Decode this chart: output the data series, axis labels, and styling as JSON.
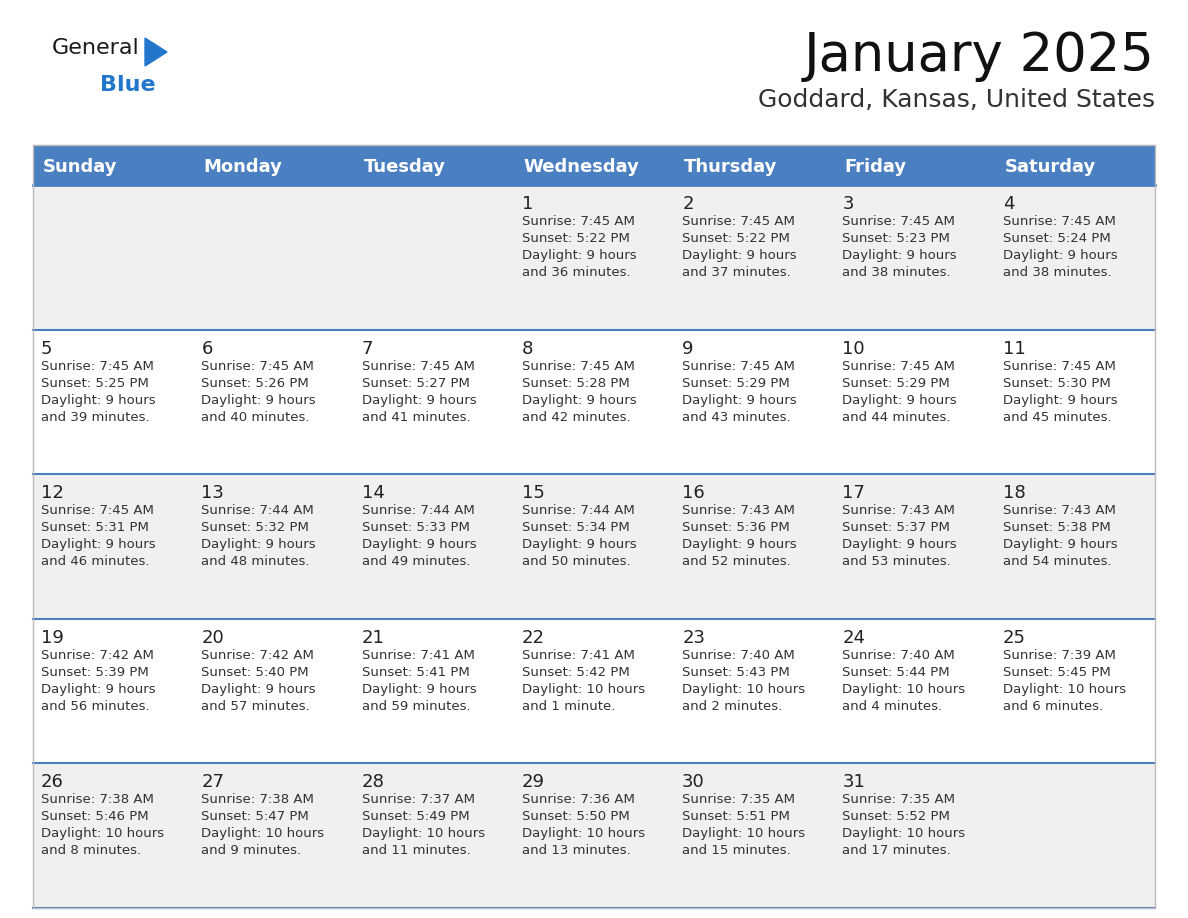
{
  "title": "January 2025",
  "subtitle": "Goddard, Kansas, United States",
  "header_bg_color": "#4a7fc1",
  "header_text_color": "#ffffff",
  "row_bg_colors": [
    "#f0f0f0",
    "#ffffff",
    "#f0f0f0",
    "#ffffff",
    "#f0f0f0"
  ],
  "text_color": "#333333",
  "day_number_color": "#222222",
  "separator_color": "#4a7fc1",
  "days_of_week": [
    "Sunday",
    "Monday",
    "Tuesday",
    "Wednesday",
    "Thursday",
    "Friday",
    "Saturday"
  ],
  "logo_text_color": "#1a1a1a",
  "logo_blue_color": "#2277cc",
  "cell_text_color": "#333333",
  "calendar_data": [
    [
      {
        "day": null,
        "lines": []
      },
      {
        "day": null,
        "lines": []
      },
      {
        "day": null,
        "lines": []
      },
      {
        "day": 1,
        "lines": [
          "Sunrise: 7:45 AM",
          "Sunset: 5:22 PM",
          "Daylight: 9 hours",
          "and 36 minutes."
        ]
      },
      {
        "day": 2,
        "lines": [
          "Sunrise: 7:45 AM",
          "Sunset: 5:22 PM",
          "Daylight: 9 hours",
          "and 37 minutes."
        ]
      },
      {
        "day": 3,
        "lines": [
          "Sunrise: 7:45 AM",
          "Sunset: 5:23 PM",
          "Daylight: 9 hours",
          "and 38 minutes."
        ]
      },
      {
        "day": 4,
        "lines": [
          "Sunrise: 7:45 AM",
          "Sunset: 5:24 PM",
          "Daylight: 9 hours",
          "and 38 minutes."
        ]
      }
    ],
    [
      {
        "day": 5,
        "lines": [
          "Sunrise: 7:45 AM",
          "Sunset: 5:25 PM",
          "Daylight: 9 hours",
          "and 39 minutes."
        ]
      },
      {
        "day": 6,
        "lines": [
          "Sunrise: 7:45 AM",
          "Sunset: 5:26 PM",
          "Daylight: 9 hours",
          "and 40 minutes."
        ]
      },
      {
        "day": 7,
        "lines": [
          "Sunrise: 7:45 AM",
          "Sunset: 5:27 PM",
          "Daylight: 9 hours",
          "and 41 minutes."
        ]
      },
      {
        "day": 8,
        "lines": [
          "Sunrise: 7:45 AM",
          "Sunset: 5:28 PM",
          "Daylight: 9 hours",
          "and 42 minutes."
        ]
      },
      {
        "day": 9,
        "lines": [
          "Sunrise: 7:45 AM",
          "Sunset: 5:29 PM",
          "Daylight: 9 hours",
          "and 43 minutes."
        ]
      },
      {
        "day": 10,
        "lines": [
          "Sunrise: 7:45 AM",
          "Sunset: 5:29 PM",
          "Daylight: 9 hours",
          "and 44 minutes."
        ]
      },
      {
        "day": 11,
        "lines": [
          "Sunrise: 7:45 AM",
          "Sunset: 5:30 PM",
          "Daylight: 9 hours",
          "and 45 minutes."
        ]
      }
    ],
    [
      {
        "day": 12,
        "lines": [
          "Sunrise: 7:45 AM",
          "Sunset: 5:31 PM",
          "Daylight: 9 hours",
          "and 46 minutes."
        ]
      },
      {
        "day": 13,
        "lines": [
          "Sunrise: 7:44 AM",
          "Sunset: 5:32 PM",
          "Daylight: 9 hours",
          "and 48 minutes."
        ]
      },
      {
        "day": 14,
        "lines": [
          "Sunrise: 7:44 AM",
          "Sunset: 5:33 PM",
          "Daylight: 9 hours",
          "and 49 minutes."
        ]
      },
      {
        "day": 15,
        "lines": [
          "Sunrise: 7:44 AM",
          "Sunset: 5:34 PM",
          "Daylight: 9 hours",
          "and 50 minutes."
        ]
      },
      {
        "day": 16,
        "lines": [
          "Sunrise: 7:43 AM",
          "Sunset: 5:36 PM",
          "Daylight: 9 hours",
          "and 52 minutes."
        ]
      },
      {
        "day": 17,
        "lines": [
          "Sunrise: 7:43 AM",
          "Sunset: 5:37 PM",
          "Daylight: 9 hours",
          "and 53 minutes."
        ]
      },
      {
        "day": 18,
        "lines": [
          "Sunrise: 7:43 AM",
          "Sunset: 5:38 PM",
          "Daylight: 9 hours",
          "and 54 minutes."
        ]
      }
    ],
    [
      {
        "day": 19,
        "lines": [
          "Sunrise: 7:42 AM",
          "Sunset: 5:39 PM",
          "Daylight: 9 hours",
          "and 56 minutes."
        ]
      },
      {
        "day": 20,
        "lines": [
          "Sunrise: 7:42 AM",
          "Sunset: 5:40 PM",
          "Daylight: 9 hours",
          "and 57 minutes."
        ]
      },
      {
        "day": 21,
        "lines": [
          "Sunrise: 7:41 AM",
          "Sunset: 5:41 PM",
          "Daylight: 9 hours",
          "and 59 minutes."
        ]
      },
      {
        "day": 22,
        "lines": [
          "Sunrise: 7:41 AM",
          "Sunset: 5:42 PM",
          "Daylight: 10 hours",
          "and 1 minute."
        ]
      },
      {
        "day": 23,
        "lines": [
          "Sunrise: 7:40 AM",
          "Sunset: 5:43 PM",
          "Daylight: 10 hours",
          "and 2 minutes."
        ]
      },
      {
        "day": 24,
        "lines": [
          "Sunrise: 7:40 AM",
          "Sunset: 5:44 PM",
          "Daylight: 10 hours",
          "and 4 minutes."
        ]
      },
      {
        "day": 25,
        "lines": [
          "Sunrise: 7:39 AM",
          "Sunset: 5:45 PM",
          "Daylight: 10 hours",
          "and 6 minutes."
        ]
      }
    ],
    [
      {
        "day": 26,
        "lines": [
          "Sunrise: 7:38 AM",
          "Sunset: 5:46 PM",
          "Daylight: 10 hours",
          "and 8 minutes."
        ]
      },
      {
        "day": 27,
        "lines": [
          "Sunrise: 7:38 AM",
          "Sunset: 5:47 PM",
          "Daylight: 10 hours",
          "and 9 minutes."
        ]
      },
      {
        "day": 28,
        "lines": [
          "Sunrise: 7:37 AM",
          "Sunset: 5:49 PM",
          "Daylight: 10 hours",
          "and 11 minutes."
        ]
      },
      {
        "day": 29,
        "lines": [
          "Sunrise: 7:36 AM",
          "Sunset: 5:50 PM",
          "Daylight: 10 hours",
          "and 13 minutes."
        ]
      },
      {
        "day": 30,
        "lines": [
          "Sunrise: 7:35 AM",
          "Sunset: 5:51 PM",
          "Daylight: 10 hours",
          "and 15 minutes."
        ]
      },
      {
        "day": 31,
        "lines": [
          "Sunrise: 7:35 AM",
          "Sunset: 5:52 PM",
          "Daylight: 10 hours",
          "and 17 minutes."
        ]
      },
      {
        "day": null,
        "lines": []
      }
    ]
  ]
}
